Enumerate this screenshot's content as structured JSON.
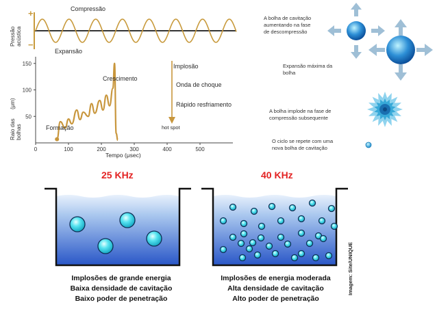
{
  "wave": {
    "compression_label": "Compressão",
    "expansion_label": "Expansão",
    "plus_sign": "+",
    "minus_sign": "−",
    "axis_label": "Pressão acústica"
  },
  "growth_chart": {
    "stages": {
      "formation": "Formação",
      "growth": "Crescimento",
      "implosion": "Implosão",
      "shock_wave": "Onda de choque",
      "rapid_cooling": "Rápido resfriamento",
      "hot_spot": "hot spot"
    },
    "y_axis_label": "Raio das bolhas",
    "y_unit": "(μm)",
    "x_axis_label": "Tempo",
    "x_unit": "(μsec)",
    "y_ticks": [
      "150",
      "100",
      "50"
    ],
    "x_ticks": [
      "0",
      "100",
      "200",
      "300",
      "400",
      "500"
    ]
  },
  "chart_data": {
    "type": "line",
    "x": [
      65,
      75,
      90,
      100,
      110,
      125,
      135,
      145,
      160,
      170,
      180,
      195,
      205,
      215,
      225,
      235,
      240,
      245,
      250
    ],
    "y": [
      7,
      40,
      28,
      45,
      36,
      62,
      44,
      58,
      50,
      74,
      56,
      80,
      62,
      90,
      70,
      103,
      150,
      18,
      5
    ],
    "xlim": [
      0,
      600
    ],
    "ylim": [
      0,
      160
    ],
    "xlabel": "Tempo",
    "ylabel": "Raio das bolhas"
  },
  "right_notes": {
    "note1": "A bolha de cavitação\naumentando na fase\nde descompressão",
    "note2": "Expansão máxima da\nbolha",
    "note3": "A bolha implode na fase de\ncompressão subsequente",
    "note4": "O ciclo se repete com uma\nnova bolha de cavitação"
  },
  "tanks": {
    "left": {
      "frequency": "25 KHz",
      "lines": [
        "Implosões de grande energia",
        "Baixa densidade de cavitação",
        "Baixo poder de penetração"
      ]
    },
    "right": {
      "frequency": "40 KHz",
      "lines": [
        "Implosões de energia moderada",
        "Alta densidade de cavitação",
        "Alto poder de penetração"
      ]
    }
  },
  "credit": "Imagem: Site/UNIQUE",
  "colors": {
    "wave": "#c89a3c",
    "curve": "#c8963c",
    "frequency": "#e32222",
    "bubble": "#3fd6e6",
    "arrow": "#9fbfd6"
  }
}
